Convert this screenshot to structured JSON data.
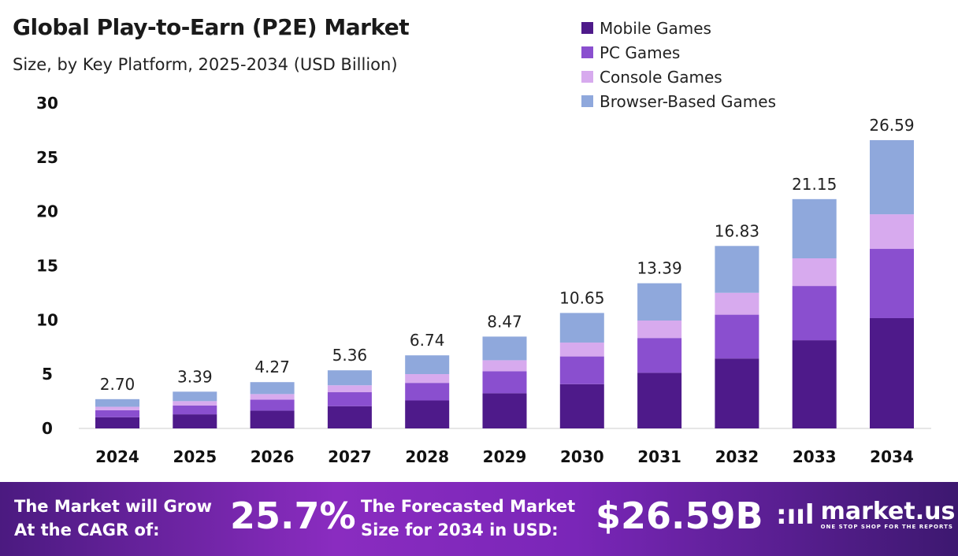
{
  "chart_data": {
    "type": "bar",
    "stacked": true,
    "title": "Global Play-to-Earn (P2E) Market",
    "subtitle": "Size, by Key Platform, 2025-2034 (USD Billion)",
    "categories": [
      "2024",
      "2025",
      "2026",
      "2027",
      "2028",
      "2029",
      "2030",
      "2031",
      "2032",
      "2033",
      "2034"
    ],
    "totals": [
      "2.70",
      "3.39",
      "4.27",
      "5.36",
      "6.74",
      "8.47",
      "10.65",
      "13.39",
      "16.83",
      "21.15",
      "26.59"
    ],
    "series": [
      {
        "name": "Mobile Games",
        "color": "#4e1a8a",
        "values": [
          1.03,
          1.3,
          1.64,
          2.05,
          2.58,
          3.24,
          4.08,
          5.13,
          6.45,
          8.13,
          10.17
        ]
      },
      {
        "name": "PC Games",
        "color": "#8a4fcf",
        "values": [
          0.65,
          0.81,
          1.02,
          1.29,
          1.62,
          2.03,
          2.56,
          3.21,
          4.04,
          5.01,
          6.39
        ]
      },
      {
        "name": "Console Games",
        "color": "#d7aaee",
        "values": [
          0.32,
          0.41,
          0.51,
          0.64,
          0.81,
          1.02,
          1.28,
          1.61,
          2.02,
          2.55,
          3.19
        ]
      },
      {
        "name": "Browser-Based Games",
        "color": "#8fa8dc",
        "values": [
          0.7,
          0.87,
          1.1,
          1.38,
          1.73,
          2.18,
          2.73,
          3.44,
          4.32,
          5.46,
          6.84
        ]
      }
    ],
    "yticks": [
      "0",
      "5",
      "10",
      "15",
      "20",
      "25",
      "30"
    ],
    "ylim": [
      0,
      30
    ],
    "grid": false,
    "legend": "top-right"
  },
  "footer": {
    "cagr_label_1": "The Market will Grow",
    "cagr_label_2": "At the CAGR of:",
    "cagr_value": "25.7%",
    "size_label_1": "The Forecasted Market",
    "size_label_2": "Size for 2034 in USD:",
    "size_value": "$26.59B",
    "logo_name": "market.us",
    "logo_tagline": "ONE STOP SHOP FOR THE REPORTS"
  }
}
